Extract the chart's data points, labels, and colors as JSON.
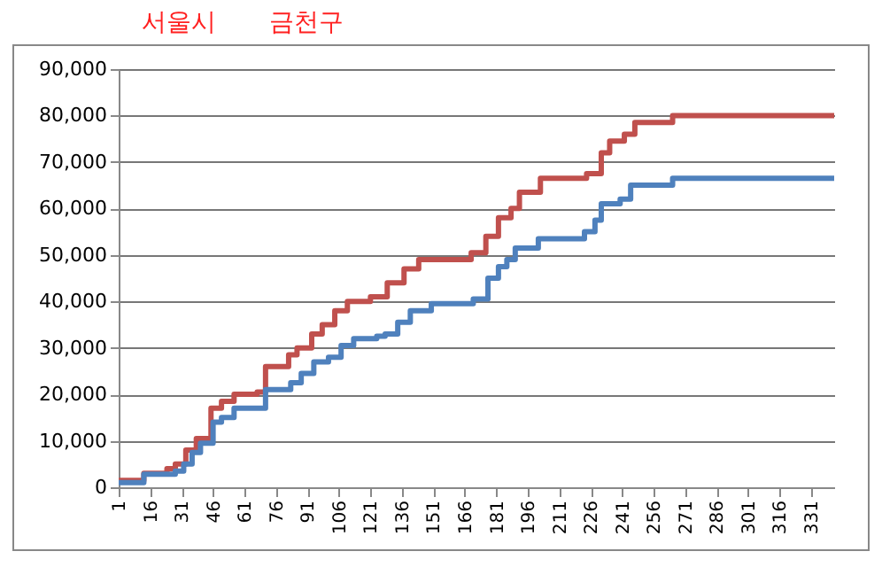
{
  "chart_data": {
    "type": "step",
    "annotations": [
      "서울시",
      "금천구"
    ],
    "xlim": [
      1,
      342
    ],
    "xticks": [
      1,
      16,
      31,
      46,
      61,
      76,
      91,
      106,
      121,
      136,
      151,
      166,
      181,
      196,
      211,
      226,
      241,
      256,
      271,
      286,
      301,
      316,
      331
    ],
    "ylim": [
      0,
      90000
    ],
    "yticks": [
      {
        "value": 0,
        "label": "0"
      },
      {
        "value": 10000,
        "label": "10,000"
      },
      {
        "value": 20000,
        "label": "20,000"
      },
      {
        "value": 30000,
        "label": "30,000"
      },
      {
        "value": 40000,
        "label": "40,000"
      },
      {
        "value": 50000,
        "label": "50,000"
      },
      {
        "value": 60000,
        "label": "60,000"
      },
      {
        "value": 70000,
        "label": "70,000"
      },
      {
        "value": 80000,
        "label": "80,000"
      },
      {
        "value": 90000,
        "label": "90,000"
      }
    ],
    "grid": "y",
    "marker": "none",
    "line_style": "solid",
    "series": [
      {
        "color": "#c0504d",
        "x": [
          1,
          13,
          24,
          28,
          33,
          38,
          45,
          50,
          56,
          67,
          71,
          82,
          86,
          93,
          98,
          104,
          110,
          121,
          129,
          137,
          144,
          169,
          176,
          182,
          188,
          192,
          202,
          224,
          231,
          235,
          242,
          247,
          265,
          342
        ],
        "values": [
          1500,
          3000,
          4000,
          5000,
          8000,
          10500,
          17000,
          18500,
          20000,
          20500,
          26000,
          28500,
          30000,
          33000,
          35000,
          38000,
          40000,
          41000,
          44000,
          47000,
          49000,
          50500,
          54000,
          58000,
          60000,
          63500,
          66500,
          67500,
          72000,
          74500,
          76000,
          78500,
          80000,
          80000
        ]
      },
      {
        "color": "#4f81bd",
        "x": [
          1,
          13,
          28,
          32,
          36,
          40,
          46,
          50,
          56,
          71,
          83,
          88,
          94,
          101,
          107,
          113,
          124,
          128,
          134,
          140,
          150,
          170,
          177,
          182,
          186,
          190,
          201,
          223,
          228,
          231,
          240,
          245,
          265,
          342
        ],
        "values": [
          1000,
          2800,
          3500,
          5000,
          7500,
          9500,
          14000,
          15000,
          17000,
          21000,
          22500,
          24500,
          27000,
          28000,
          30500,
          32000,
          32500,
          33000,
          35500,
          38000,
          39500,
          40500,
          45000,
          47500,
          49000,
          51500,
          53500,
          55000,
          57500,
          61000,
          62000,
          65000,
          66500,
          66500
        ]
      }
    ]
  }
}
